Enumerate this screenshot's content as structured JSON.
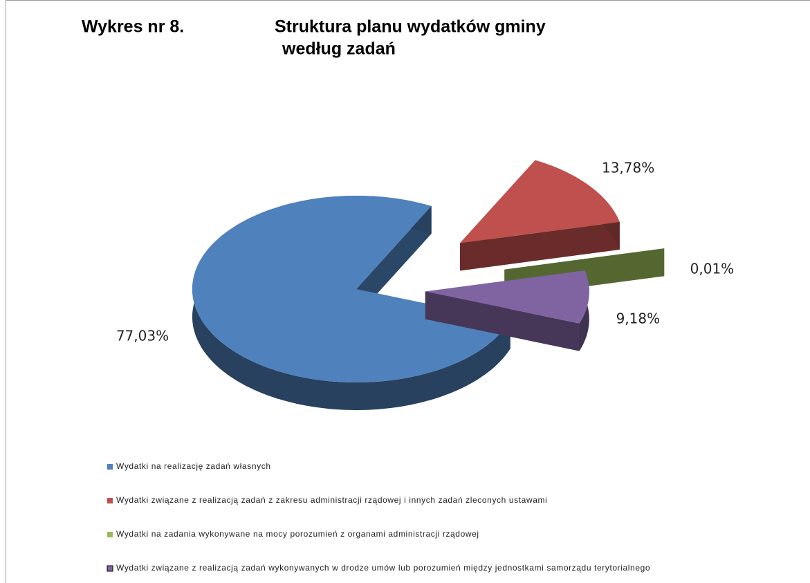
{
  "chart_data": {
    "type": "pie",
    "label": "Wykres nr 8.",
    "title": [
      "Struktura planu wydatków  gminy",
      "według zadań"
    ],
    "categories": [
      "Wydatki na realizację zadań własnych",
      "Wydatki związane z realizacją zadań z zakresu administracji rządowej i innych zadań zleconych ustawami",
      "Wydatki na zadania wykonywane na mocy porozumień z organami administracji rządowej",
      "Wydatki związane z realizacją zadań wykonywanych w drodze umów lub porozumień między jednostkami samorządu terytorialnego"
    ],
    "values": [
      77.03,
      13.78,
      0.01,
      9.18
    ],
    "value_labels": [
      "77,03%",
      "13,78%",
      "0,01%",
      "9,18%"
    ],
    "colors": [
      "#4f81bd",
      "#c0504d",
      "#9bbb59",
      "#8064a2"
    ]
  }
}
